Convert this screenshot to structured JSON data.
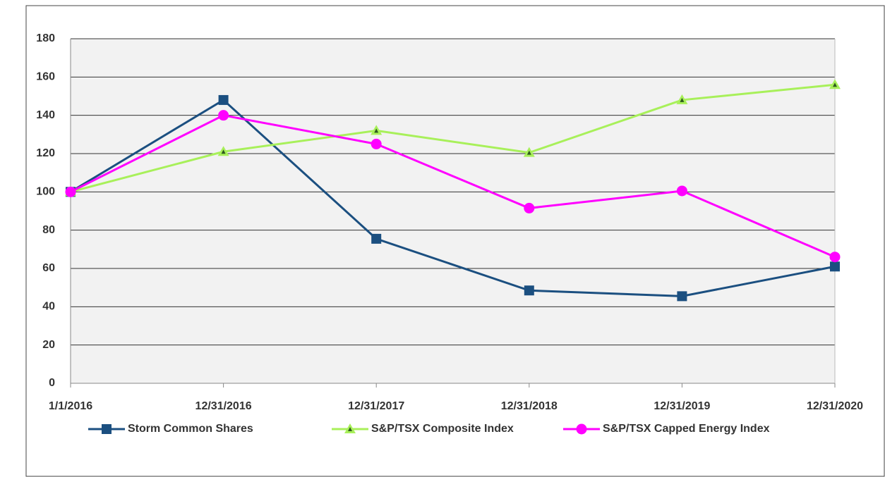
{
  "chart_data": {
    "type": "line",
    "categories": [
      "1/1/2016",
      "12/31/2016",
      "12/31/2017",
      "12/31/2018",
      "12/31/2019",
      "12/31/2020"
    ],
    "series": [
      {
        "name": "Storm Common Shares",
        "color": "#1b4f80",
        "marker": "square",
        "values": [
          100,
          148,
          75.5,
          48.5,
          45.5,
          61
        ]
      },
      {
        "name": "S&P/TSX Composite Index",
        "color": "#a8f05a",
        "marker": "triangle",
        "values": [
          100,
          121,
          132,
          120.5,
          148,
          156
        ]
      },
      {
        "name": "S&P/TSX Capped Energy  Index",
        "color": "#ff00ff",
        "marker": "circle",
        "values": [
          100,
          140,
          125,
          91.5,
          100.5,
          66
        ]
      }
    ],
    "ylim": [
      0,
      180
    ],
    "yticks": [
      0,
      20,
      40,
      60,
      80,
      100,
      120,
      140,
      160,
      180
    ],
    "grid": true,
    "legend": "bottom"
  }
}
